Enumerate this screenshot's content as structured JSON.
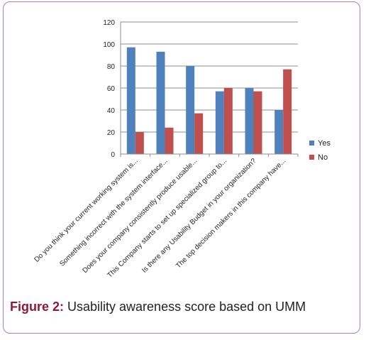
{
  "chart_data": {
    "type": "bar",
    "categories": [
      "Do you think your current working system is...",
      "Something incorrect with the system interface...",
      "Does your company consistently produce usable...",
      "This Company starts to set up specialized group to...",
      "Is there any Usability Budget in your organization?",
      "The top decision makers in this company have..."
    ],
    "series": [
      {
        "name": "Yes",
        "color": "#4f81bd",
        "values": [
          97,
          93,
          80,
          57,
          60,
          40
        ]
      },
      {
        "name": "No",
        "color": "#c0504d",
        "values": [
          20,
          24,
          37,
          60,
          57,
          77
        ]
      }
    ],
    "yticks": [
      "0",
      "20",
      "40",
      "60",
      "80",
      "100",
      "120"
    ],
    "ylim": [
      0,
      120
    ],
    "grid": true,
    "legend": "right"
  },
  "caption": {
    "label": "Figure 2:",
    "text": " Usability awareness score based on UMM"
  }
}
